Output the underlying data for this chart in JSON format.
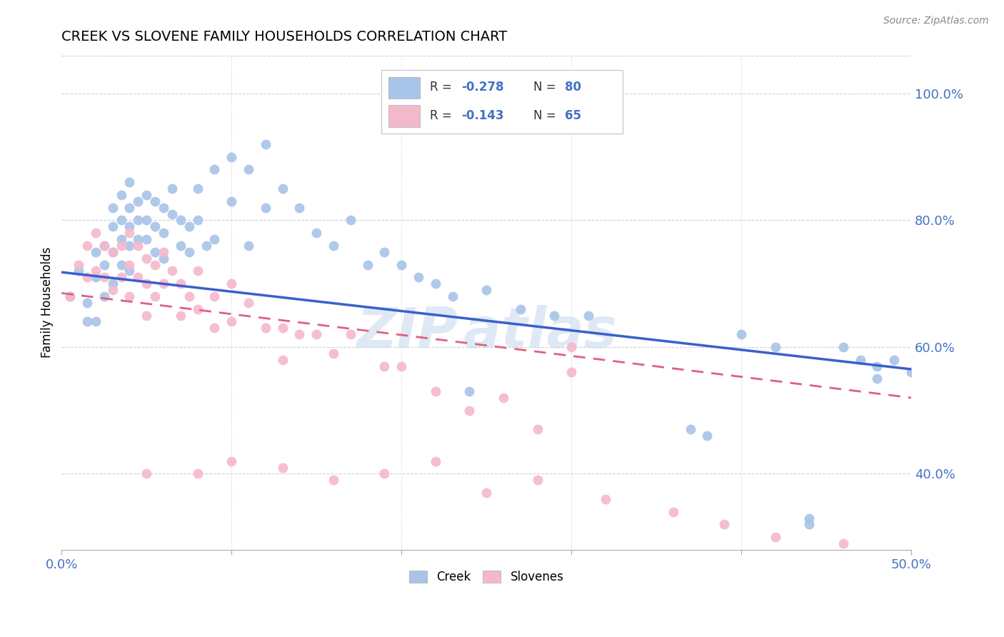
{
  "title": "CREEK VS SLOVENE FAMILY HOUSEHOLDS CORRELATION CHART",
  "source": "Source: ZipAtlas.com",
  "ylabel": "Family Households",
  "right_yticks": [
    "100.0%",
    "80.0%",
    "60.0%",
    "40.0%"
  ],
  "right_ytick_vals": [
    1.0,
    0.8,
    0.6,
    0.4
  ],
  "xlim": [
    0.0,
    0.5
  ],
  "ylim": [
    0.28,
    1.06
  ],
  "creek_color": "#a8c4e8",
  "slovene_color": "#f4b8cb",
  "creek_line_color": "#3a5fcd",
  "slovene_line_color": "#e06080",
  "legend_label_creek": "Creek",
  "legend_label_slovene": "Slovenes",
  "background_color": "#ffffff",
  "grid_color": "#d0d0d0",
  "creek_scatter_x": [
    0.005,
    0.01,
    0.015,
    0.015,
    0.02,
    0.02,
    0.02,
    0.025,
    0.025,
    0.025,
    0.03,
    0.03,
    0.03,
    0.03,
    0.035,
    0.035,
    0.035,
    0.035,
    0.04,
    0.04,
    0.04,
    0.04,
    0.04,
    0.045,
    0.045,
    0.045,
    0.05,
    0.05,
    0.05,
    0.055,
    0.055,
    0.055,
    0.06,
    0.06,
    0.06,
    0.065,
    0.065,
    0.07,
    0.07,
    0.075,
    0.075,
    0.08,
    0.08,
    0.085,
    0.09,
    0.09,
    0.1,
    0.1,
    0.11,
    0.11,
    0.12,
    0.12,
    0.13,
    0.14,
    0.15,
    0.16,
    0.17,
    0.18,
    0.19,
    0.2,
    0.21,
    0.22,
    0.23,
    0.24,
    0.25,
    0.27,
    0.29,
    0.31,
    0.37,
    0.38,
    0.4,
    0.42,
    0.44,
    0.44,
    0.46,
    0.47,
    0.48,
    0.48,
    0.49,
    0.5
  ],
  "creek_scatter_y": [
    0.68,
    0.72,
    0.67,
    0.64,
    0.75,
    0.71,
    0.64,
    0.76,
    0.73,
    0.68,
    0.82,
    0.79,
    0.75,
    0.7,
    0.84,
    0.8,
    0.77,
    0.73,
    0.86,
    0.82,
    0.79,
    0.76,
    0.72,
    0.83,
    0.8,
    0.77,
    0.84,
    0.8,
    0.77,
    0.83,
    0.79,
    0.75,
    0.82,
    0.78,
    0.74,
    0.85,
    0.81,
    0.8,
    0.76,
    0.79,
    0.75,
    0.85,
    0.8,
    0.76,
    0.88,
    0.77,
    0.9,
    0.83,
    0.88,
    0.76,
    0.92,
    0.82,
    0.85,
    0.82,
    0.78,
    0.76,
    0.8,
    0.73,
    0.75,
    0.73,
    0.71,
    0.7,
    0.68,
    0.53,
    0.69,
    0.66,
    0.65,
    0.65,
    0.47,
    0.46,
    0.62,
    0.6,
    0.33,
    0.32,
    0.6,
    0.58,
    0.57,
    0.55,
    0.58,
    0.56
  ],
  "slovene_scatter_x": [
    0.005,
    0.01,
    0.015,
    0.015,
    0.02,
    0.02,
    0.025,
    0.025,
    0.03,
    0.03,
    0.035,
    0.035,
    0.04,
    0.04,
    0.04,
    0.045,
    0.045,
    0.05,
    0.05,
    0.05,
    0.055,
    0.055,
    0.06,
    0.06,
    0.065,
    0.07,
    0.07,
    0.075,
    0.08,
    0.08,
    0.09,
    0.09,
    0.1,
    0.1,
    0.11,
    0.12,
    0.13,
    0.13,
    0.14,
    0.15,
    0.16,
    0.17,
    0.19,
    0.2,
    0.22,
    0.24,
    0.26,
    0.28,
    0.3,
    0.3,
    0.05,
    0.08,
    0.1,
    0.13,
    0.16,
    0.19,
    0.22,
    0.25,
    0.28,
    0.32,
    0.36,
    0.39,
    0.42,
    0.46,
    0.48
  ],
  "slovene_scatter_y": [
    0.68,
    0.73,
    0.76,
    0.71,
    0.78,
    0.72,
    0.76,
    0.71,
    0.75,
    0.69,
    0.76,
    0.71,
    0.78,
    0.73,
    0.68,
    0.76,
    0.71,
    0.74,
    0.7,
    0.65,
    0.73,
    0.68,
    0.75,
    0.7,
    0.72,
    0.7,
    0.65,
    0.68,
    0.72,
    0.66,
    0.68,
    0.63,
    0.7,
    0.64,
    0.67,
    0.63,
    0.63,
    0.58,
    0.62,
    0.62,
    0.59,
    0.62,
    0.57,
    0.57,
    0.53,
    0.5,
    0.52,
    0.47,
    0.6,
    0.56,
    0.4,
    0.4,
    0.42,
    0.41,
    0.39,
    0.4,
    0.42,
    0.37,
    0.39,
    0.36,
    0.34,
    0.32,
    0.3,
    0.29,
    0.27
  ],
  "creek_line_x0": 0.0,
  "creek_line_y0": 0.718,
  "creek_line_x1": 0.5,
  "creek_line_y1": 0.565,
  "slovene_line_x0": 0.0,
  "slovene_line_y0": 0.685,
  "slovene_line_x1": 0.5,
  "slovene_line_y1": 0.52
}
